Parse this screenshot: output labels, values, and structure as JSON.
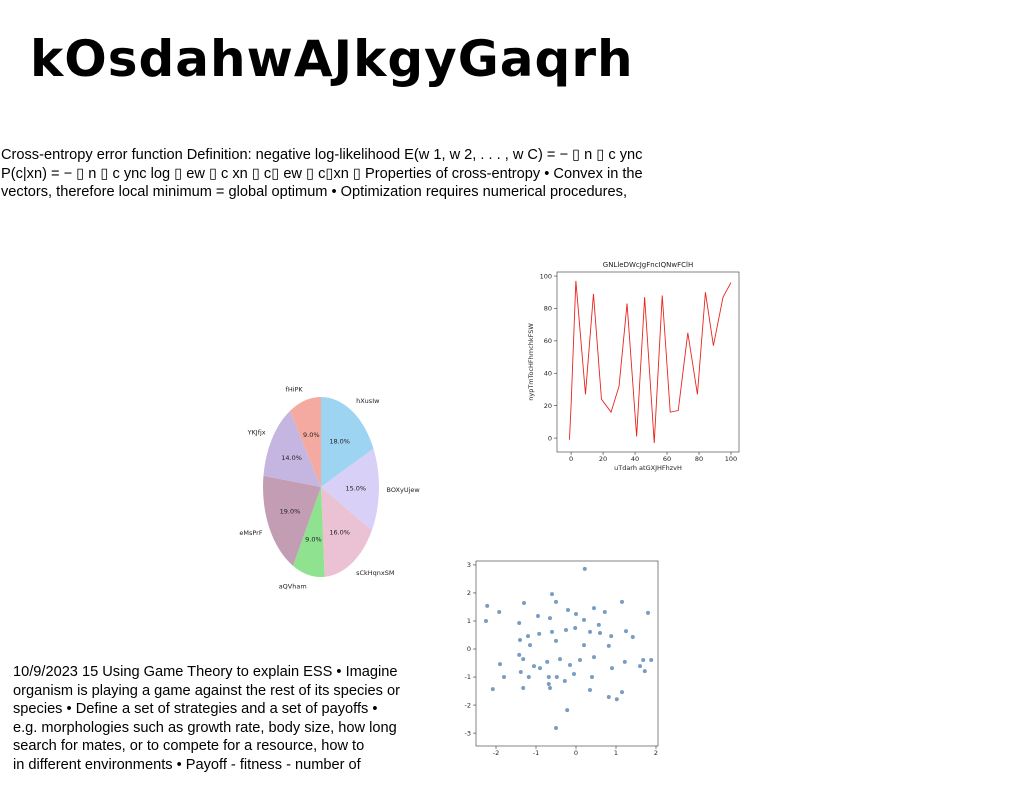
{
  "title": "kOsdahwAJkgyGaqrh",
  "text_blocks": [
    {
      "lines": [
        "Cross-entropy error function Definition: negative log-likelihood E(w 1, w 2, . . . , w C) = − ▯ n ▯ c ync",
        "P(c|xn) = − ▯ n ▯ c ync log ▯ ew ▯ c xn ▯ c▯ ew ▯ c▯xn ▯ Properties of cross-entropy • Convex in the",
        "vectors, therefore local minimum = global optimum • Optimization requires numerical procedures,"
      ]
    },
    {
      "lines": [
        "10/9/2023 15 Using Game Theory to explain ESS • Imagine",
        "organism is playing a game against the rest of its species or",
        "species • Define a set of strategies and a set of payoffs •",
        "e.g. morphologies such as growth rate, body size, how long",
        "search for mates, or to compete for a resource, how to",
        "in different environments • Payoff - fitness - number of"
      ]
    }
  ],
  "chart_data": [
    {
      "type": "line",
      "title": "GNLleDWcJgFncIQNwFClH",
      "xlabel": "uTdarh atGXJHFhzvH",
      "ylabel": "nypTmTocHFhmchkFSW",
      "x": [
        -1,
        0,
        3,
        9,
        14,
        19,
        25,
        30,
        35,
        41,
        46,
        52,
        57,
        62,
        67,
        73,
        79,
        84,
        89,
        95,
        100
      ],
      "values": [
        -1,
        20,
        97,
        27,
        89,
        24,
        16,
        32,
        83,
        1,
        87,
        -3,
        88,
        16,
        17,
        65,
        27,
        90,
        57,
        87,
        96
      ],
      "color": "#e8251f",
      "xlim": [
        -8.8,
        105
      ],
      "ylim": [
        -8.6,
        102.5
      ],
      "xticks": [
        0,
        20,
        40,
        60,
        80,
        100
      ],
      "yticks": [
        0,
        20,
        40,
        60,
        80,
        100
      ]
    },
    {
      "type": "pie",
      "categories": [
        "hXusIw",
        "BOXyUjew",
        "sCkHqnxSM",
        "aQVham",
        "eMsPrF",
        "YKJfjx",
        "fHiPK"
      ],
      "values": [
        18,
        15,
        16,
        9,
        19,
        14,
        9
      ],
      "value_labels": [
        "18.0%",
        "15.0%",
        "16.0%",
        "9.0%",
        "19.0%",
        "14.0%",
        "9.0%"
      ],
      "colors": [
        "#9dd4f2",
        "#d8d0f6",
        "#eac2d3",
        "#8fe290",
        "#c29db3",
        "#c4b6e1",
        "#f4aaa1"
      ]
    },
    {
      "type": "scatter",
      "color": "#3f74a8",
      "x": [
        0.22,
        -0.6,
        -2.22,
        -1.92,
        -2.25,
        -1.3,
        -0.5,
        1.15,
        1.8,
        -0.2,
        0,
        0.45,
        0.72,
        -0.95,
        -0.65,
        -1.42,
        0.2,
        0.57,
        1.25,
        -0.02,
        -0.25,
        -0.6,
        -0.92,
        -1.2,
        -1.4,
        0.35,
        0.6,
        0.88,
        1.42,
        -0.5,
        0.2,
        0.82,
        -1.15,
        -1.42,
        -1.9,
        -1.32,
        -1.05,
        -0.9,
        -0.72,
        -0.4,
        -0.15,
        0.1,
        0.45,
        1.22,
        1.6,
        1.88,
        1.68,
        -1.8,
        -1.38,
        -1.18,
        -0.68,
        -0.48,
        -0.05,
        0.4,
        0.9,
        1.72,
        -1.32,
        -0.65,
        -0.68,
        -0.28,
        0.35,
        0.82,
        1.02,
        1.15,
        -0.22,
        -0.5,
        -2.08
      ],
      "values": [
        2.86,
        1.96,
        1.54,
        1.32,
        1.0,
        1.64,
        1.68,
        1.68,
        1.29,
        1.39,
        1.25,
        1.46,
        1.32,
        1.18,
        1.1,
        0.93,
        1.04,
        0.86,
        0.64,
        0.75,
        0.68,
        0.61,
        0.54,
        0.46,
        0.32,
        0.61,
        0.57,
        0.46,
        0.43,
        0.29,
        0.14,
        0.11,
        0.14,
        -0.21,
        -0.54,
        -0.36,
        -0.61,
        -0.68,
        -0.46,
        -0.36,
        -0.57,
        -0.39,
        -0.29,
        -0.46,
        -0.61,
        -0.39,
        -0.39,
        -1.0,
        -0.82,
        -1.0,
        -1.0,
        -1.0,
        -0.89,
        -1.0,
        -0.68,
        -0.79,
        -1.39,
        -1.39,
        -1.25,
        -1.14,
        -1.46,
        -1.71,
        -1.79,
        -1.54,
        -2.18,
        -2.82,
        -1.43
      ],
      "xlim": [
        -2.5,
        2.05
      ],
      "ylim": [
        -3.46,
        3.14
      ],
      "xticks": [
        -2,
        -1,
        0,
        1,
        2
      ],
      "yticks": [
        -3,
        -2,
        -1,
        0,
        1,
        2,
        3
      ]
    }
  ]
}
